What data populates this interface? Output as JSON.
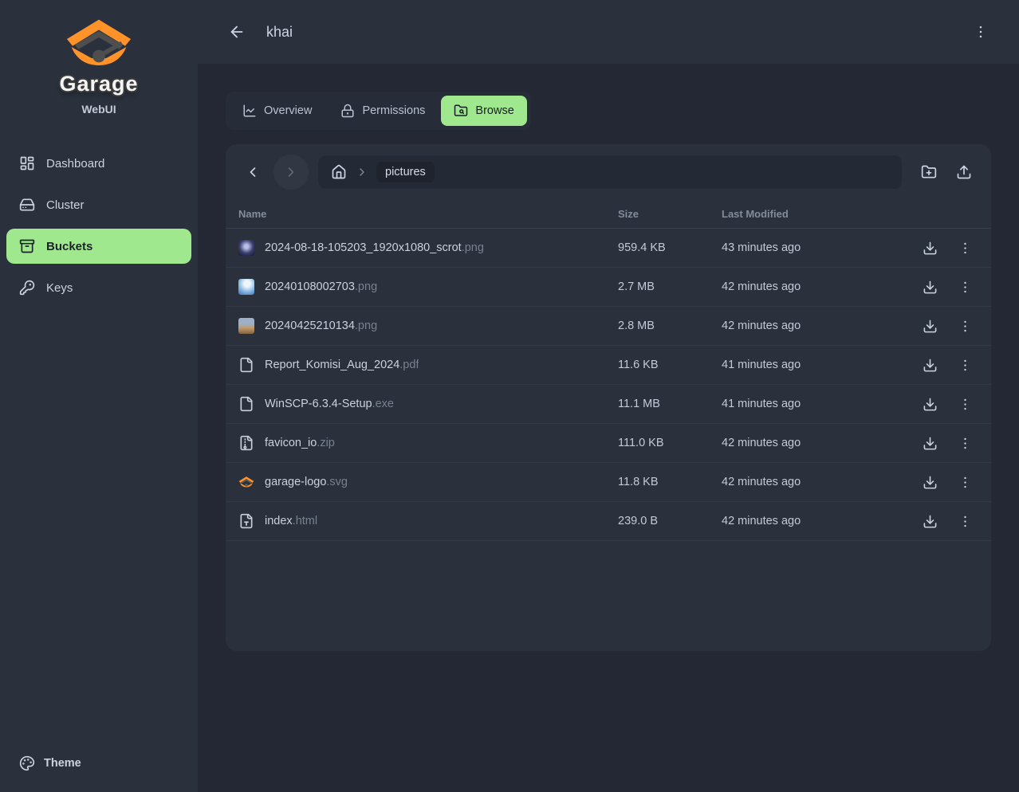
{
  "sidebar": {
    "brand": {
      "title": "Garage",
      "subtitle": "WebUI"
    },
    "items": [
      {
        "label": "Dashboard",
        "icon": "dashboard",
        "active": false
      },
      {
        "label": "Cluster",
        "icon": "cluster",
        "active": false
      },
      {
        "label": "Buckets",
        "icon": "buckets",
        "active": true
      },
      {
        "label": "Keys",
        "icon": "keys",
        "active": false
      }
    ],
    "footer": {
      "theme_label": "Theme"
    }
  },
  "header": {
    "title": "khai"
  },
  "tabs": [
    {
      "label": "Overview",
      "icon": "chart",
      "active": false
    },
    {
      "label": "Permissions",
      "icon": "lock",
      "active": false
    },
    {
      "label": "Browse",
      "icon": "folder-search",
      "active": true
    }
  ],
  "browser": {
    "breadcrumb": {
      "current_folder": "pictures"
    },
    "table": {
      "columns": [
        "Name",
        "Size",
        "Last Modified"
      ],
      "rows": [
        {
          "name": "2024-08-18-105203_1920x1080_scrot",
          "ext": ".png",
          "size": "959.4 KB",
          "modified": "43 minutes ago",
          "icon": "thumb-1"
        },
        {
          "name": "20240108002703",
          "ext": ".png",
          "size": "2.7 MB",
          "modified": "42 minutes ago",
          "icon": "thumb-2"
        },
        {
          "name": "20240425210134",
          "ext": ".png",
          "size": "2.8 MB",
          "modified": "42 minutes ago",
          "icon": "thumb-3"
        },
        {
          "name": "Report_Komisi_Aug_2024",
          "ext": ".pdf",
          "size": "11.6 KB",
          "modified": "41 minutes ago",
          "icon": "file"
        },
        {
          "name": "WinSCP-6.3.4-Setup",
          "ext": ".exe",
          "size": "11.1 MB",
          "modified": "41 minutes ago",
          "icon": "file"
        },
        {
          "name": "favicon_io",
          "ext": ".zip",
          "size": "111.0 KB",
          "modified": "42 minutes ago",
          "icon": "file-archive"
        },
        {
          "name": "garage-logo",
          "ext": ".svg",
          "size": "11.8 KB",
          "modified": "42 minutes ago",
          "icon": "garage-thumb"
        },
        {
          "name": "index",
          "ext": ".html",
          "size": "239.0 B",
          "modified": "42 minutes ago",
          "icon": "file-type"
        }
      ]
    }
  },
  "colors": {
    "accent_green": "#9fe88d",
    "brand_orange": "#ff9329"
  }
}
